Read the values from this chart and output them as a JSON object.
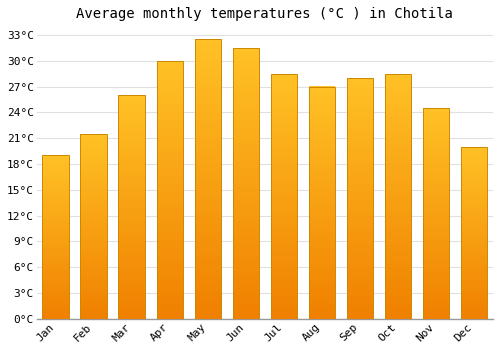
{
  "title": "Average monthly temperatures (°C ) in Chotila",
  "months": [
    "Jan",
    "Feb",
    "Mar",
    "Apr",
    "May",
    "Jun",
    "Jul",
    "Aug",
    "Sep",
    "Oct",
    "Nov",
    "Dec"
  ],
  "values": [
    19.0,
    21.5,
    26.0,
    30.0,
    32.5,
    31.5,
    28.5,
    27.0,
    28.0,
    28.5,
    24.5,
    20.0
  ],
  "bar_color_top": "#FFC125",
  "bar_color_bottom": "#F08000",
  "bar_border_color": "#CC8800",
  "ylim": [
    0,
    34
  ],
  "yticks": [
    0,
    3,
    6,
    9,
    12,
    15,
    18,
    21,
    24,
    27,
    30,
    33
  ],
  "ytick_labels": [
    "0°C",
    "3°C",
    "6°C",
    "9°C",
    "12°C",
    "15°C",
    "18°C",
    "21°C",
    "24°C",
    "27°C",
    "30°C",
    "33°C"
  ],
  "background_color": "#ffffff",
  "grid_color": "#e0e0e0",
  "title_fontsize": 10,
  "tick_fontsize": 8,
  "bar_width": 0.7,
  "figsize": [
    5.0,
    3.5
  ],
  "dpi": 100
}
